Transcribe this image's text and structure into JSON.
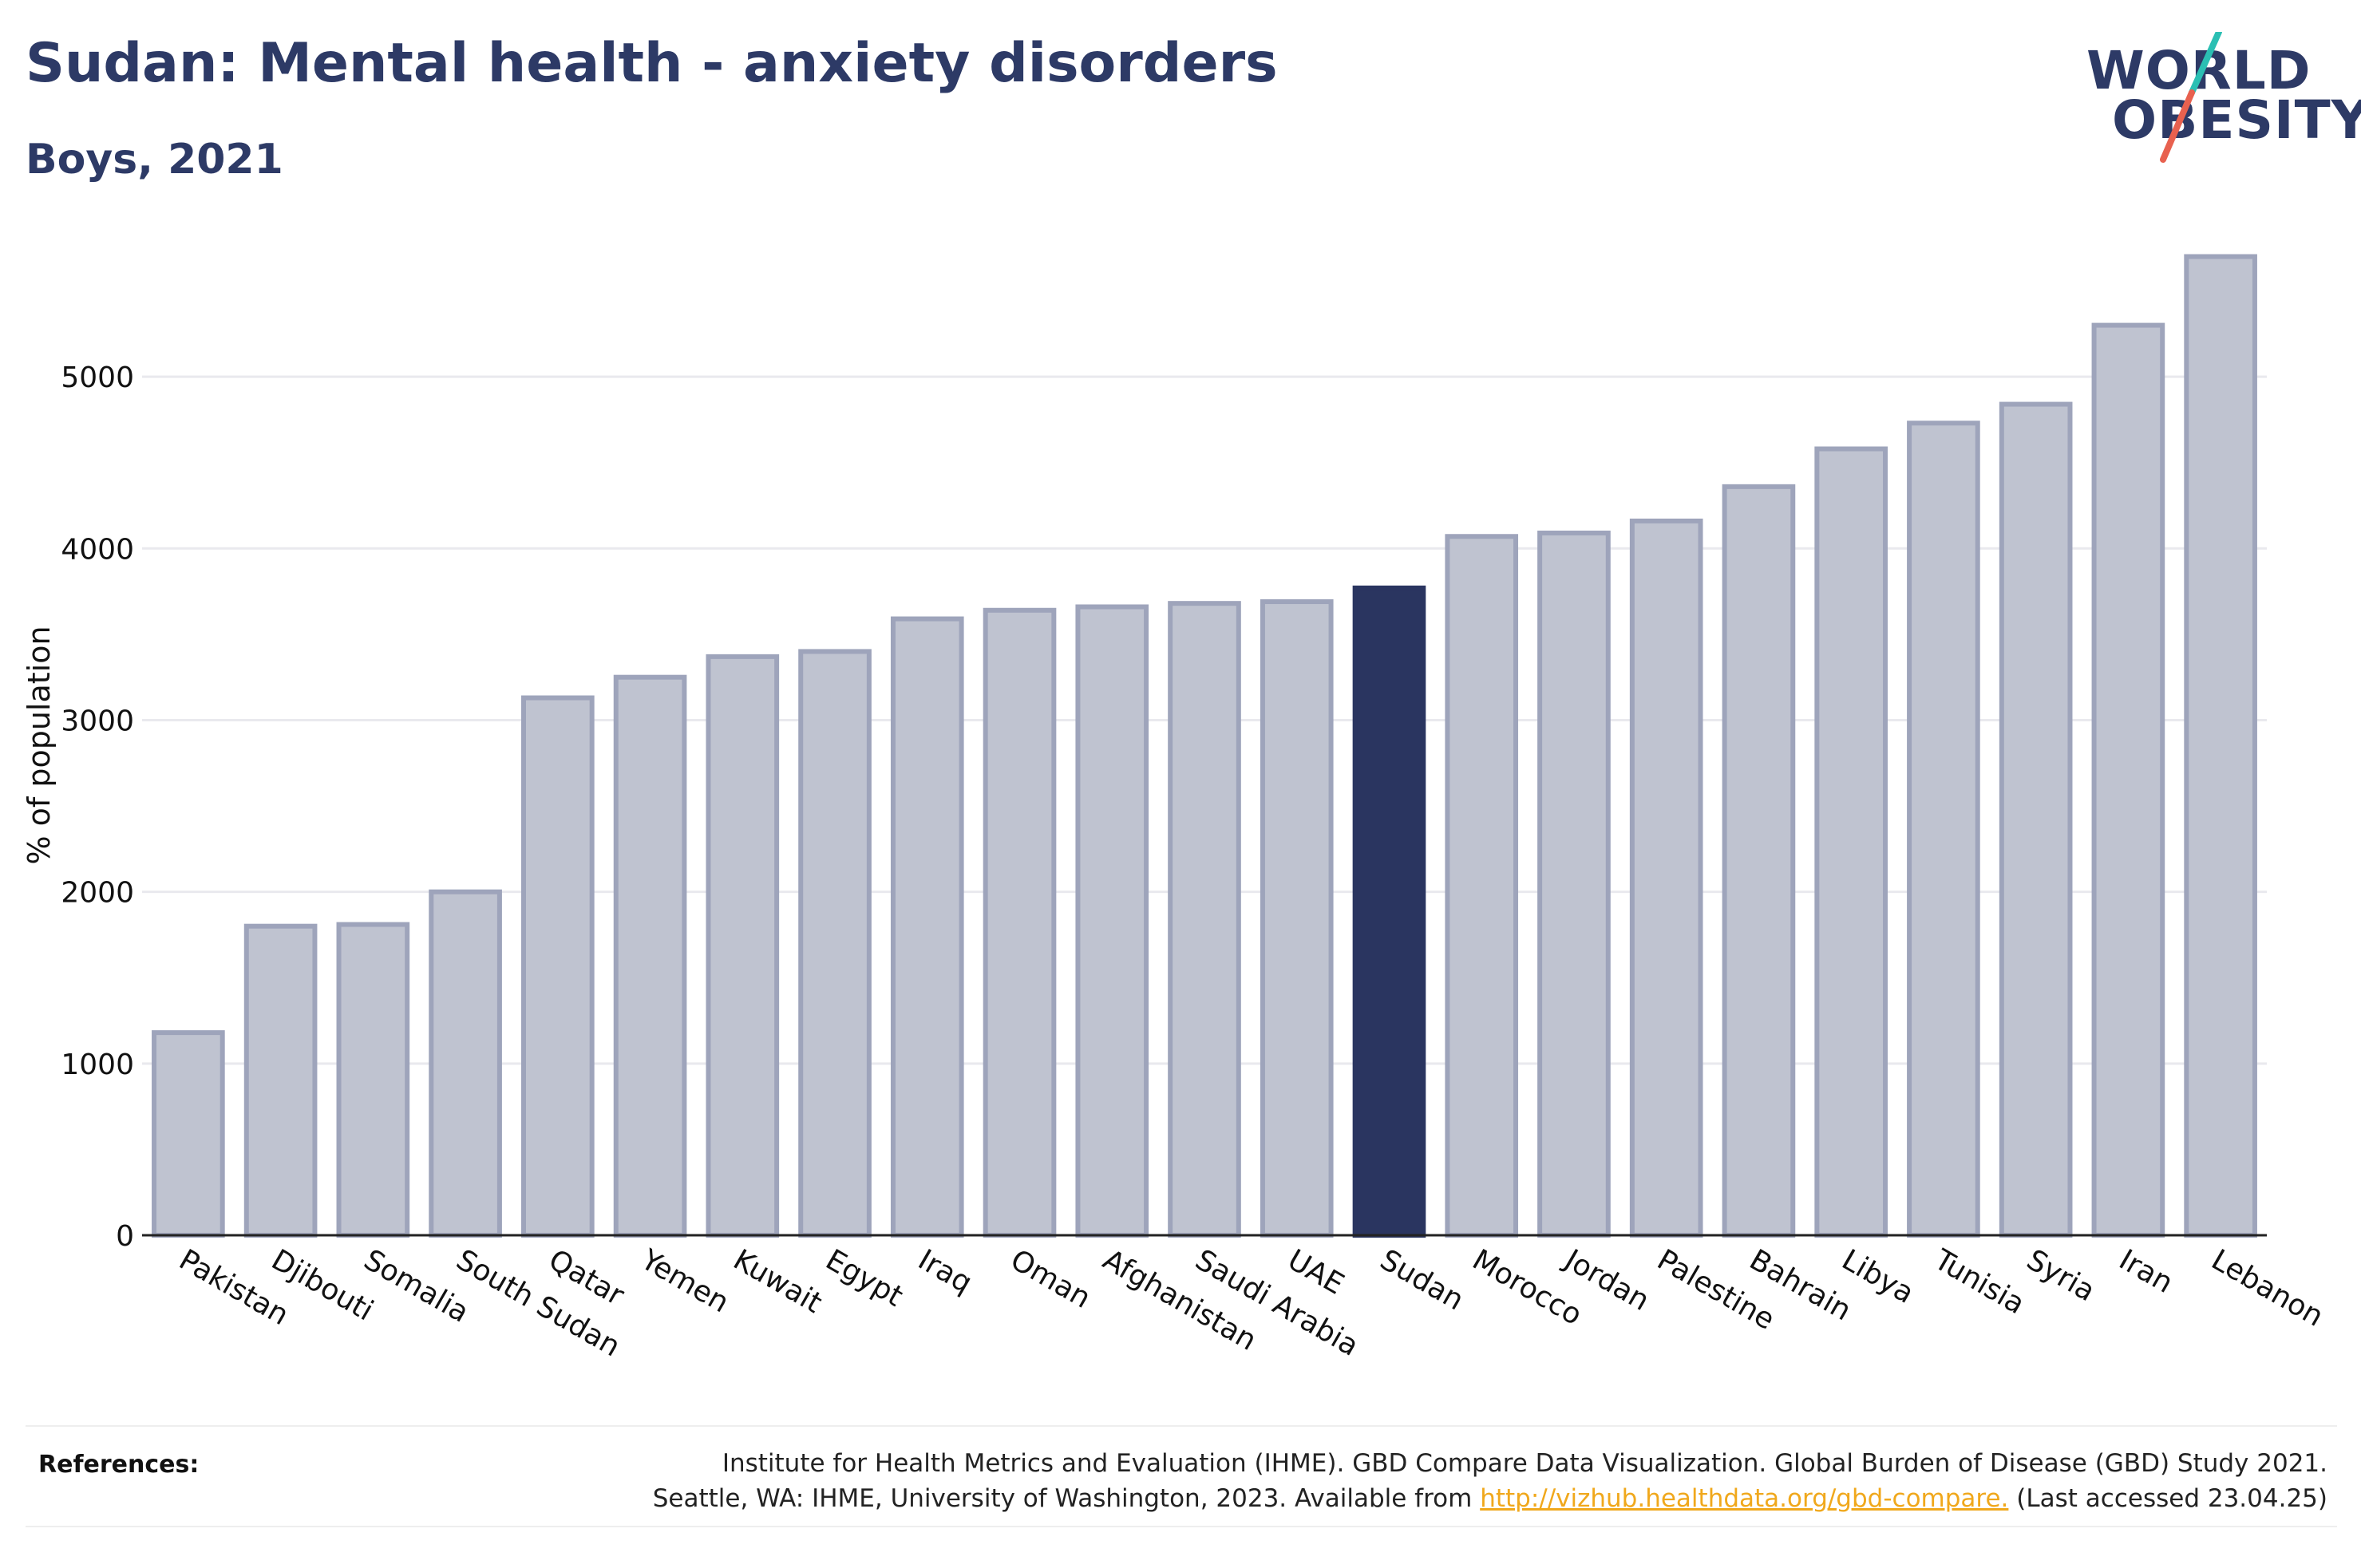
{
  "header": {
    "title": "Sudan: Mental health - anxiety disorders",
    "subtitle": "Boys, 2021"
  },
  "logo": {
    "line1": "WORLD",
    "line2": "OBESITY",
    "slash_colors": [
      "#2bbfb3",
      "#e8614f"
    ]
  },
  "colors": {
    "bar": "#bfc3d0",
    "bar_stroke": "#9ea4bb",
    "highlight": "#2a3560",
    "text": "#2d3a66",
    "link": "#f0a81c"
  },
  "chart_data": {
    "type": "bar",
    "title": "Sudan: Mental health - anxiety disorders",
    "subtitle": "Boys, 2021",
    "ylabel": "% of population",
    "xlabel": "",
    "ylim": [
      0,
      5800
    ],
    "yticks": [
      0,
      1000,
      2000,
      3000,
      4000,
      5000
    ],
    "grid": true,
    "highlight": "Sudan",
    "categories": [
      "Pakistan",
      "Djibouti",
      "Somalia",
      "South Sudan",
      "Qatar",
      "Yemen",
      "Kuwait",
      "Egypt",
      "Iraq",
      "Oman",
      "Afghanistan",
      "Saudi Arabia",
      "UAE",
      "Sudan",
      "Morocco",
      "Jordan",
      "Palestine",
      "Bahrain",
      "Libya",
      "Tunisia",
      "Syria",
      "Iran",
      "Lebanon"
    ],
    "values": [
      1180,
      1800,
      1810,
      2000,
      3130,
      3250,
      3370,
      3400,
      3590,
      3640,
      3660,
      3680,
      3690,
      3770,
      4070,
      4090,
      4160,
      4360,
      4580,
      4730,
      4840,
      5300,
      5700
    ]
  },
  "references": {
    "label": "References:",
    "line1": "Institute for Health Metrics and Evaluation (IHME). GBD Compare Data Visualization. Global Burden of Disease (GBD) Study 2021.",
    "line2_prefix": "Seattle, WA: IHME, University of Washington, 2023. Available from ",
    "link": "http://vizhub.healthdata.org/gbd-compare.",
    "line2_suffix": " (Last accessed 23.04.25)"
  }
}
